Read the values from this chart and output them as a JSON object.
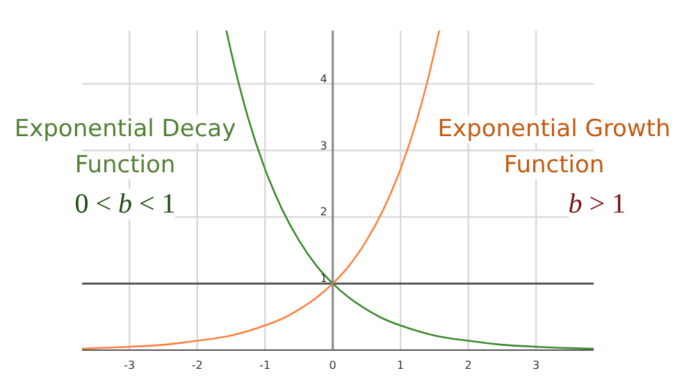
{
  "chart_data": {
    "type": "line",
    "xlim": [
      -3.7,
      3.85
    ],
    "ylim": [
      0,
      4.8
    ],
    "xticks": [
      -3,
      -2,
      -1,
      0,
      1,
      2,
      3
    ],
    "yticks": [
      1,
      2,
      3,
      4
    ],
    "grid": true,
    "marker": "none",
    "ref_lines": [
      {
        "axis": "y",
        "value": 1,
        "color": "#555555"
      }
    ],
    "annotations": [
      "0 < b < 1",
      "b > 1"
    ],
    "series": [
      {
        "name": "Exponential Decay Function",
        "color": "#3b8a2e",
        "x": [
          -1.57,
          -1.5,
          -1.25,
          -1,
          -0.75,
          -0.5,
          -0.25,
          0,
          0.25,
          0.5,
          0.75,
          1,
          1.5,
          2,
          2.5,
          3,
          3.5,
          3.85
        ],
        "values": [
          4.8,
          4.48,
          3.49,
          2.72,
          2.12,
          1.65,
          1.28,
          1,
          0.78,
          0.61,
          0.47,
          0.37,
          0.22,
          0.14,
          0.08,
          0.05,
          0.03,
          0.02
        ]
      },
      {
        "name": "Exponential Growth Function",
        "color": "#ff8040",
        "x": [
          -3.7,
          -3.5,
          -3,
          -2.5,
          -2,
          -1.5,
          -1,
          -0.75,
          -0.5,
          -0.25,
          0,
          0.25,
          0.5,
          0.75,
          1,
          1.25,
          1.5,
          1.57
        ],
        "values": [
          0.02,
          0.03,
          0.05,
          0.08,
          0.14,
          0.22,
          0.37,
          0.47,
          0.61,
          0.78,
          1,
          1.28,
          1.65,
          2.12,
          2.72,
          3.49,
          4.48,
          4.8
        ]
      }
    ]
  }
}
